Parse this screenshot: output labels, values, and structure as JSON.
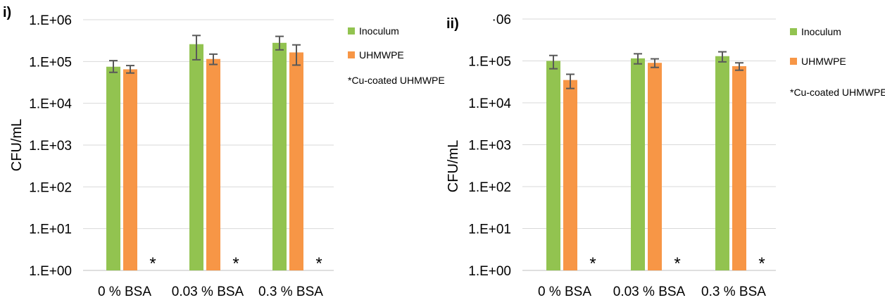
{
  "colors": {
    "inoculum": "#92c350",
    "uhmwpe": "#f79646",
    "error_bar": "#595959",
    "gridline": "#d9d9d9",
    "axis": "#bfbfbf"
  },
  "chart_data": [
    {
      "type": "bar",
      "panel_label": "i)",
      "scale": "log10",
      "ylim": [
        1,
        1000000
      ],
      "ylabel": "CFU/mL",
      "xlabel": "",
      "grid": true,
      "legend_position": "right",
      "y_ticks": [
        "1.E+00",
        "1.E+01",
        "1.E+02",
        "1.E+03",
        "1.E+04",
        "1.E+05",
        "1.E+06"
      ],
      "categories": [
        "0 % BSA",
        "0.03 % BSA",
        "0.3 % BSA"
      ],
      "series": [
        {
          "name": "Inoculum",
          "color_key": "inoculum",
          "values": [
            75000,
            260000,
            280000
          ],
          "err_low": [
            55000,
            110000,
            190000
          ],
          "err_high": [
            105000,
            420000,
            400000
          ]
        },
        {
          "name": "UHMWPE",
          "color_key": "uhmwpe",
          "values": [
            65000,
            115000,
            165000
          ],
          "err_low": [
            53000,
            85000,
            82000
          ],
          "err_high": [
            80000,
            150000,
            250000
          ]
        },
        {
          "name": "Cu-coated UHMWPE",
          "marker": "*",
          "values": [
            null,
            null,
            null
          ]
        }
      ],
      "legend_entries": [
        "Inoculum",
        "UHMWPE",
        "*Cu-coated UHMWPE"
      ],
      "star_mark": "*"
    },
    {
      "type": "bar",
      "panel_label": "ii)",
      "scale": "log10",
      "ylim": [
        1,
        1000000
      ],
      "ylabel": "CFU/mL",
      "xlabel": "",
      "grid": true,
      "legend_position": "right",
      "y_ticks": [
        "1.E+00",
        "1.E+01",
        "1.E+02",
        "1.E+03",
        "1.E+04",
        "1.E+05",
        "·06"
      ],
      "categories": [
        "0 % BSA",
        "0.03 % BSA",
        "0.3 % BSA"
      ],
      "series": [
        {
          "name": "Inoculum",
          "color_key": "inoculum",
          "values": [
            100000,
            115000,
            130000
          ],
          "err_low": [
            65000,
            85000,
            95000
          ],
          "err_high": [
            135000,
            148000,
            165000
          ]
        },
        {
          "name": "UHMWPE",
          "color_key": "uhmwpe",
          "values": [
            35000,
            90000,
            75000
          ],
          "err_low": [
            22000,
            70000,
            60000
          ],
          "err_high": [
            48000,
            112000,
            90000
          ]
        },
        {
          "name": "Cu-coated UHMWPE",
          "marker": "*",
          "values": [
            null,
            null,
            null
          ]
        }
      ],
      "legend_entries": [
        "Inoculum",
        "UHMWPE",
        "*Cu-coated UHMWPE"
      ],
      "star_mark": "*"
    }
  ]
}
